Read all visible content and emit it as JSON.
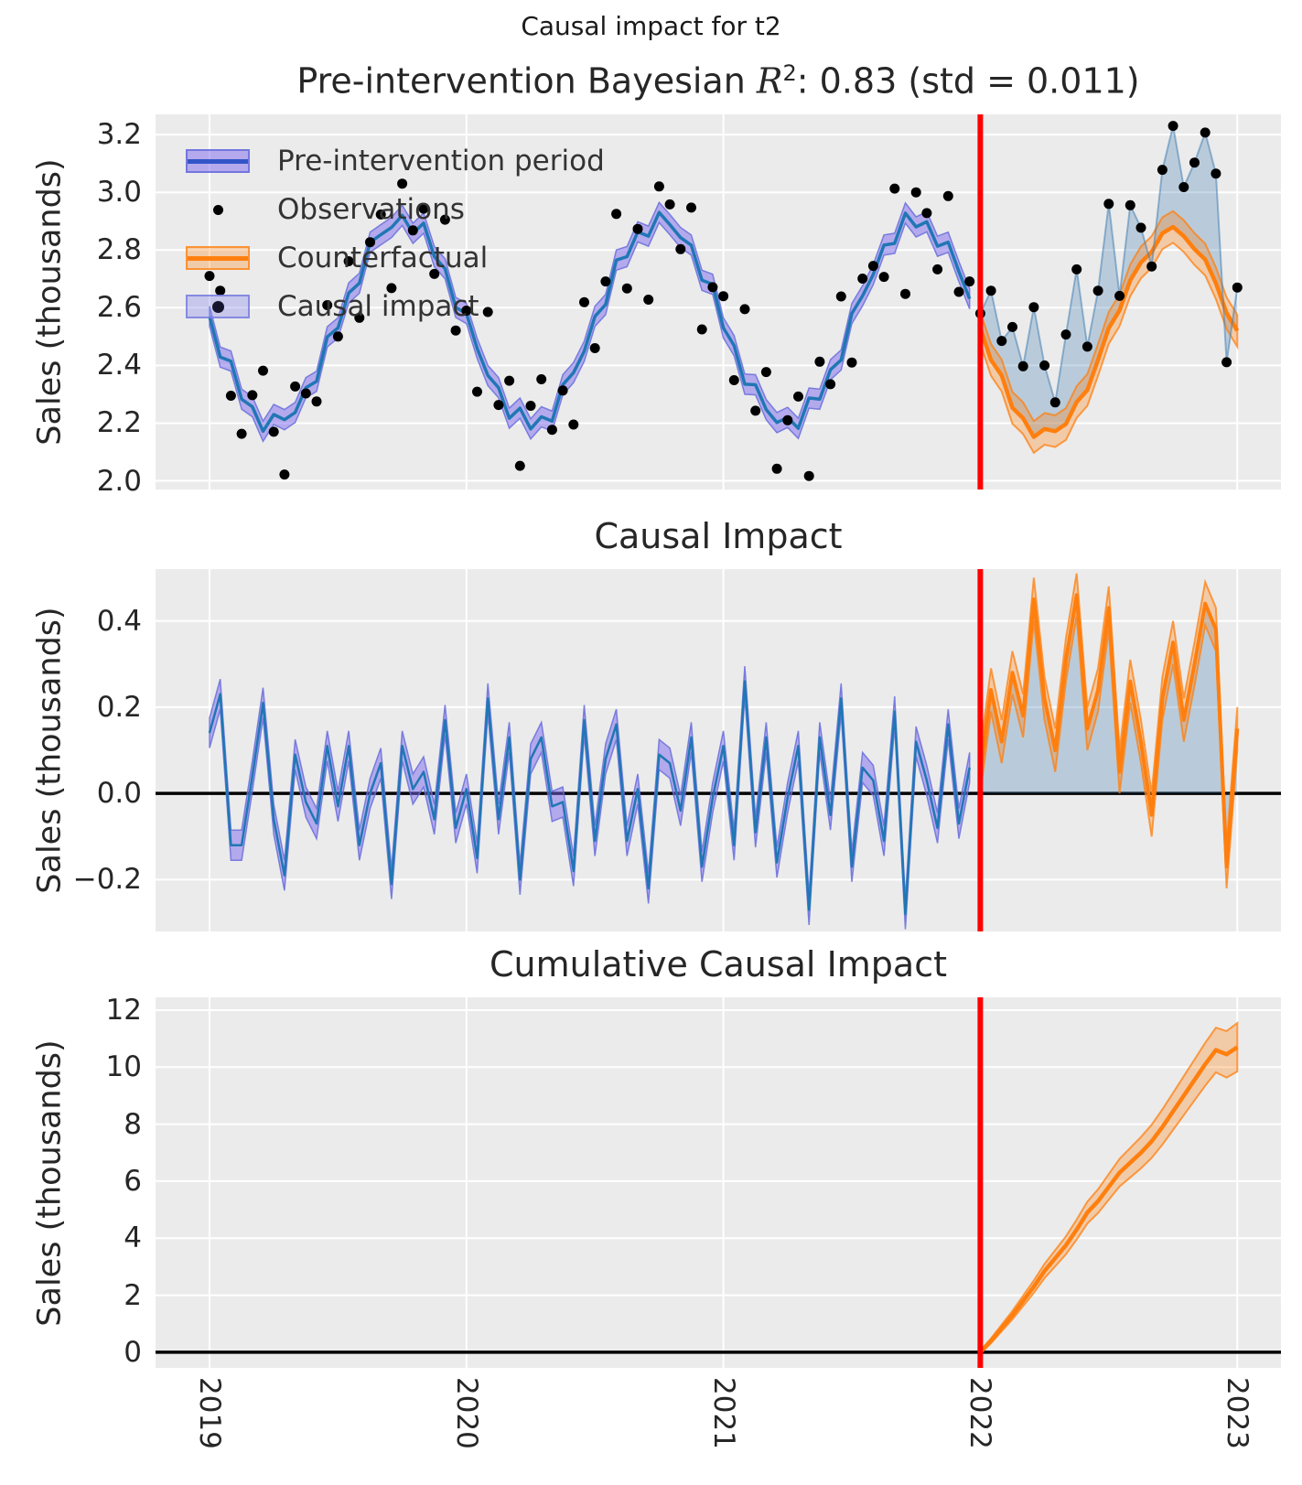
{
  "suptitle": "Causal impact for t2",
  "x_axis": {
    "xlim": [
      2018.79,
      2023.17
    ],
    "ticks": [
      {
        "v": 2019,
        "label": "2019"
      },
      {
        "v": 2020,
        "label": "2020"
      },
      {
        "v": 2021,
        "label": "2021"
      },
      {
        "v": 2022,
        "label": "2022"
      },
      {
        "v": 2023,
        "label": "2023"
      }
    ],
    "intervention_x": 2022
  },
  "legend": [
    {
      "label": "Pre-intervention period",
      "type": "band-line-blue"
    },
    {
      "label": "Observations",
      "type": "dot"
    },
    {
      "label": "Counterfactual",
      "type": "band-line-orange"
    },
    {
      "label": "Causal impact",
      "type": "patch-dot"
    }
  ],
  "colors": {
    "figure_bg": "#ffffff",
    "axes_bg": "#ebebeb",
    "grid": "#ffffff",
    "text": "#262626",
    "fit_line": "#1f77b4",
    "hdi_band": "rgba(123,104,238,0.50)",
    "hdi_band_edge": "rgba(105,110,220,0.85)",
    "legend_blue_line": "#3354c8",
    "counterfactual_line": "#ff7f0e",
    "counterfactual_band": "rgba(255,127,14,0.30)",
    "counterfactual_band_edge": "rgba(255,127,14,0.75)",
    "impact_fill": "rgba(70,130,180,0.30)",
    "post_obs_line": "rgba(70,130,180,0.55)",
    "observations": "#000000",
    "intervention_line": "#ff0000",
    "zero_line": "#000000",
    "legend_impact_dot": "#15152e"
  },
  "chart_data": {
    "type": "line",
    "x_start": 2019.0,
    "x_step_years": 0.0416667,
    "post_x_start": 2022.0,
    "seasonal_cycle_mu": [
      2.55,
      2.459,
      2.375,
      2.303,
      2.247,
      2.212,
      2.2,
      2.212,
      2.247,
      2.303,
      2.375,
      2.459,
      2.55,
      2.641,
      2.725,
      2.797,
      2.853,
      2.888,
      2.9,
      2.888,
      2.853,
      2.797,
      2.725,
      2.641
    ],
    "fit_wiggle_cycle": [
      0.02,
      -0.03,
      0.04,
      -0.02,
      0.01,
      -0.04,
      0.03,
      0.0,
      -0.01
    ],
    "pre_observation_noise": [
      0.16,
      0.2,
      -0.08,
      -0.14,
      0.05,
      0.17,
      -0.03,
      -0.19,
      0.08,
      0.0,
      -0.1,
      0.15,
      -0.05,
      0.12,
      -0.16,
      0.03,
      0.07,
      -0.22,
      0.13,
      -0.02,
      0.09,
      -0.08,
      0.18,
      -0.12,
      0.04,
      -0.15,
      0.21,
      -0.04,
      0.1,
      -0.16,
      0.06,
      0.14,
      -0.07,
      0.01,
      -0.18,
      0.16,
      -0.09,
      0.05,
      0.2,
      -0.13,
      0.02,
      -0.26,
      0.12,
      0.07,
      -0.05,
      0.15,
      -0.2,
      0.03,
      0.09,
      -0.11,
      0.22,
      -0.06,
      0.13,
      -0.17,
      0.01,
      0.08,
      -0.23,
      0.11,
      -0.04,
      0.18,
      -0.14,
      0.06,
      0.02,
      -0.09,
      0.16,
      -0.24,
      0.1,
      0.04,
      -0.12,
      0.19,
      -0.07,
      0.05
    ],
    "pre_band_halfwidth": 0.035,
    "counterfactual_wiggle": [
      -0.02,
      -0.04,
      -0.01,
      -0.05,
      -0.03,
      -0.06,
      -0.02,
      -0.04,
      -0.05,
      -0.03,
      -0.06,
      -0.04,
      -0.02,
      -0.05,
      -0.03,
      -0.04,
      -0.06,
      -0.03,
      -0.02,
      -0.04,
      -0.05,
      -0.03,
      -0.04,
      -0.06,
      -0.03
    ],
    "counterfactual_band_halfwidth": 0.055,
    "impact_post": [
      0.05,
      0.24,
      0.12,
      0.28,
      0.18,
      0.45,
      0.22,
      0.1,
      0.31,
      0.46,
      0.15,
      0.24,
      0.43,
      0.05,
      0.26,
      0.12,
      -0.05,
      0.22,
      0.35,
      0.17,
      0.3,
      0.44,
      0.38,
      -0.17,
      0.15
    ],
    "impact_pre_band_halfwidth": 0.035,
    "impact_post_band_halfwidth": 0.05,
    "cumulative_impact": [
      0.0,
      0.4,
      0.85,
      1.3,
      1.8,
      2.3,
      2.85,
      3.3,
      3.75,
      4.3,
      4.9,
      5.3,
      5.8,
      6.3,
      6.65,
      7.0,
      7.4,
      7.9,
      8.45,
      9.0,
      9.55,
      10.1,
      10.6,
      10.45,
      10.7
    ],
    "cumulative_band_halfwidth_start": 0.05,
    "cumulative_band_halfwidth_end": 0.85,
    "panels": [
      {
        "name": "observations",
        "title_prefix": "Pre-intervention Bayesian ",
        "title_r": "R",
        "title_sup": "2",
        "title_suffix": ": 0.83 (std = 0.011)",
        "ylabel": "Sales (thousands)",
        "ylim": [
          1.97,
          3.27
        ],
        "yticks": [
          {
            "v": 2.0,
            "label": "2.0"
          },
          {
            "v": 2.2,
            "label": "2.2"
          },
          {
            "v": 2.4,
            "label": "2.4"
          },
          {
            "v": 2.6,
            "label": "2.6"
          },
          {
            "v": 2.8,
            "label": "2.8"
          },
          {
            "v": 3.0,
            "label": "3.0"
          },
          {
            "v": 3.2,
            "label": "3.2"
          }
        ]
      },
      {
        "name": "causal-impact",
        "title": "Causal Impact",
        "ylabel": "Sales (thousands)",
        "ylim": [
          -0.32,
          0.52
        ],
        "yticks": [
          {
            "v": -0.2,
            "label": "−0.2"
          },
          {
            "v": 0.0,
            "label": "0.0"
          },
          {
            "v": 0.2,
            "label": "0.2"
          },
          {
            "v": 0.4,
            "label": "0.4"
          }
        ]
      },
      {
        "name": "cumulative-causal-impact",
        "title": "Cumulative Causal Impact",
        "ylabel": "Sales (thousands)",
        "ylim": [
          -0.55,
          12.45
        ],
        "yticks": [
          {
            "v": 0,
            "label": "0"
          },
          {
            "v": 2,
            "label": "2"
          },
          {
            "v": 4,
            "label": "4"
          },
          {
            "v": 6,
            "label": "6"
          },
          {
            "v": 8,
            "label": "8"
          },
          {
            "v": 10,
            "label": "10"
          },
          {
            "v": 12,
            "label": "12"
          }
        ]
      }
    ]
  }
}
